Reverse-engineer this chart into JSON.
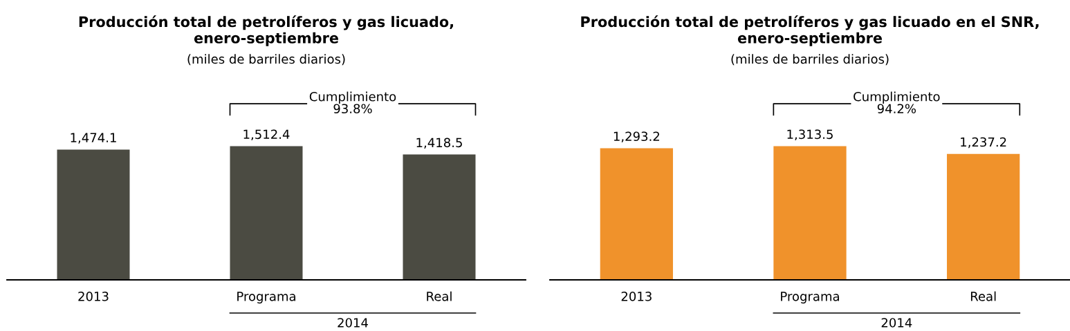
{
  "chart_data": [
    {
      "type": "bar",
      "title": "Producción total de petrolíferos y gas licuado,\nenero-septiembre",
      "subtitle": "(miles de barriles diarios)",
      "categories": [
        "2013",
        "Programa",
        "Real"
      ],
      "values": [
        1474.1,
        1512.4,
        1418.5
      ],
      "value_labels": [
        "1,474.1",
        "1,512.4",
        "1,418.5"
      ],
      "color": "#4b4b42",
      "tick_labels": "x",
      "annotations": [
        "Cumplimiento\n93.8%",
        "2014"
      ]
    },
    {
      "type": "bar",
      "title": "Producción total de petrolíferos y gas licuado en el SNR,\nenero-septiembre",
      "subtitle": "(miles de barriles diarios)",
      "categories": [
        "2013",
        "Programa",
        "Real"
      ],
      "values": [
        1293.2,
        1313.5,
        1237.2
      ],
      "value_labels": [
        "1,293.2",
        "1,313.5",
        "1,237.2"
      ],
      "color": "#f0922b",
      "tick_labels": "x",
      "annotations": [
        "Cumplimiento\n94.2%",
        "2014"
      ]
    }
  ]
}
